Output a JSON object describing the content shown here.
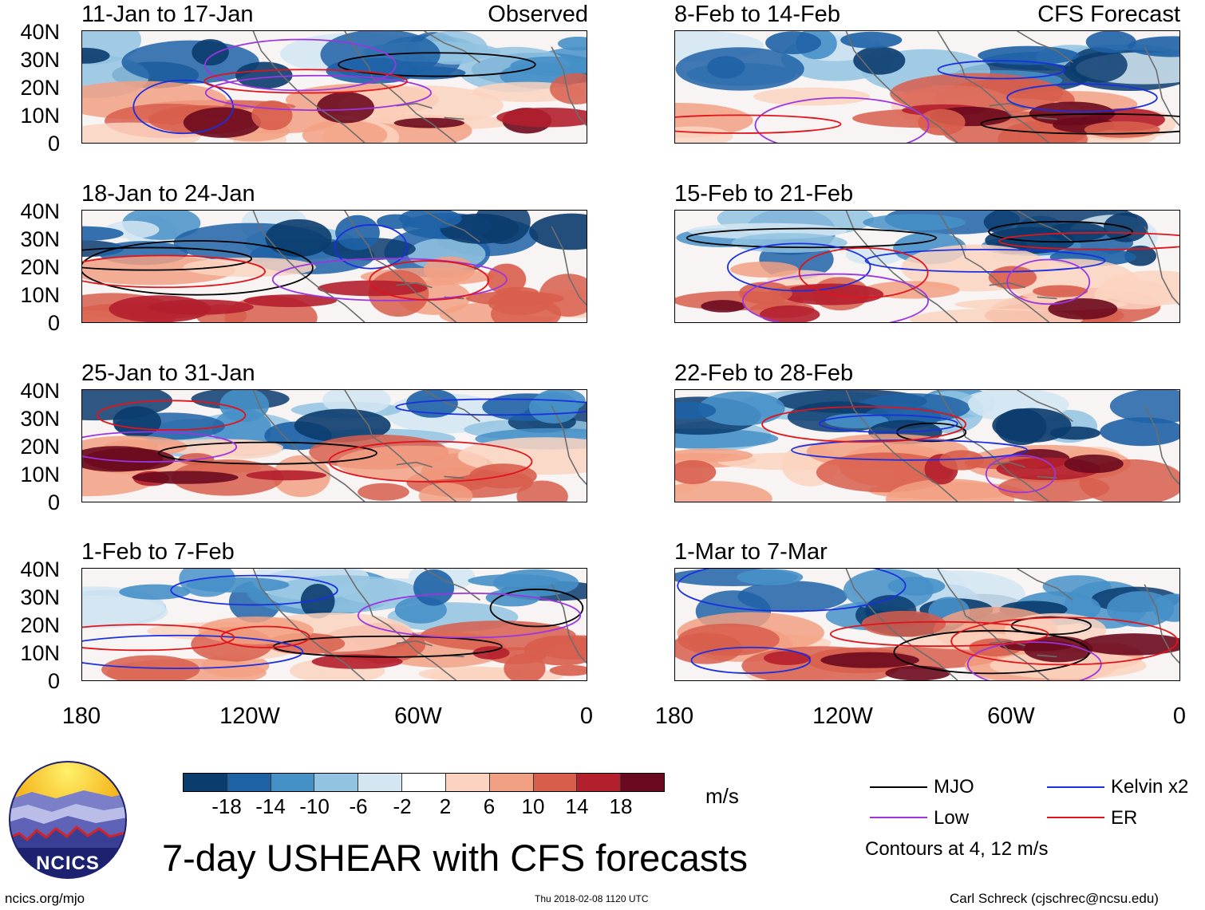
{
  "panels_left_tag": "Observed",
  "panels_right_tag": "CFS Forecast",
  "panels_left": [
    {
      "title": "11-Jan to 17-Jan"
    },
    {
      "title": "18-Jan to 24-Jan"
    },
    {
      "title": "25-Jan to 31-Jan"
    },
    {
      "title": "1-Feb to 7-Feb"
    }
  ],
  "panels_right": [
    {
      "title": "8-Feb to 14-Feb"
    },
    {
      "title": "15-Feb to 21-Feb"
    },
    {
      "title": "22-Feb to 28-Feb"
    },
    {
      "title": "1-Mar to 7-Mar"
    }
  ],
  "lat_labels": [
    "40N",
    "30N",
    "20N",
    "10N",
    "0"
  ],
  "lon_labels": [
    "180",
    "120W",
    "60W",
    "0"
  ],
  "colorbar": {
    "labels": [
      "-18",
      "-14",
      "-10",
      "-6",
      "-2",
      "2",
      "6",
      "10",
      "14",
      "18"
    ],
    "colors": [
      "#0b3c6e",
      "#1e62a6",
      "#4690c8",
      "#92c3e0",
      "#d3e6f2",
      "#ffffff",
      "#fcd3c0",
      "#f2a083",
      "#d85e4c",
      "#b41f2d",
      "#6b0a1e"
    ],
    "units": "m/s"
  },
  "legend": {
    "mjo": "MJO",
    "kelvin": "Kelvin x2",
    "low": "Low",
    "er": "ER",
    "note": "Contours at 4, 12 m/s",
    "colors": {
      "mjo": "#000000",
      "kelvin": "#1a2fe0",
      "low": "#9b35e0",
      "er": "#e0141a"
    }
  },
  "main_title": "7-day USHEAR with CFS forecasts",
  "logo_text": "NCICS",
  "footer": {
    "website": "ncics.org/mjo",
    "timestamp": "Thu 2018-02-08 1120 UTC",
    "credit": "Carl Schreck (cjschrec@ncsu.edu)"
  }
}
